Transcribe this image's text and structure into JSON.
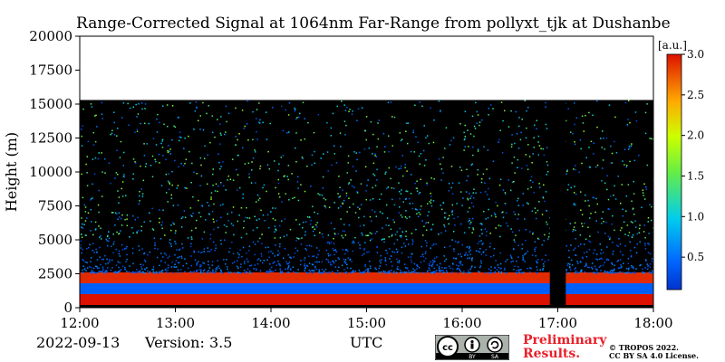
{
  "chart_data": {
    "type": "heatmap",
    "title": "Range-Corrected Signal at 1064nm Far-Range from pollyxt_tjk at Dushanbe",
    "xlabel": "",
    "ylabel": "Height (m)",
    "x_ticks": [
      "12:00",
      "13:00",
      "14:00",
      "15:00",
      "16:00",
      "17:00",
      "18:00"
    ],
    "x_range_hours": [
      12,
      18
    ],
    "y_ticks": [
      0,
      2500,
      5000,
      7500,
      10000,
      12500,
      15000,
      17500,
      20000
    ],
    "ylim": [
      0,
      20000
    ],
    "data_top_height_m": 15300,
    "colorbar": {
      "label": "[a.u.]",
      "ticks": [
        0.5,
        1.0,
        1.5,
        2.0,
        2.5,
        3.0
      ],
      "range": [
        0.1,
        3.0
      ],
      "colormap": "jet"
    },
    "layers": [
      {
        "name": "near-surface bright layer",
        "bottom_m": 200,
        "top_m": 1000,
        "value": 3.0
      },
      {
        "name": "blue band",
        "bottom_m": 1000,
        "top_m": 1800,
        "value": 0.4
      },
      {
        "name": "bright aerosol layer",
        "bottom_m": 1800,
        "top_m": 2600,
        "value": 2.9
      },
      {
        "name": "noisy free troposphere",
        "bottom_m": 2600,
        "top_m": 15300,
        "value": 0.3
      }
    ],
    "gaps": [
      {
        "start": "16:55",
        "end": "17:05"
      }
    ]
  },
  "footer": {
    "date": "2022-09-13",
    "version": "Version: 3.5",
    "time_label": "UTC",
    "preliminary": [
      "Preliminary",
      "Results."
    ],
    "license": [
      "© TROPOS 2022.",
      "CC BY SA 4.0 License."
    ],
    "badge": [
      "BY",
      "SA"
    ]
  },
  "colors": {
    "background_no_data": "#000000",
    "clear_top": "#ffffff",
    "preliminary_text": "#e8202a"
  }
}
